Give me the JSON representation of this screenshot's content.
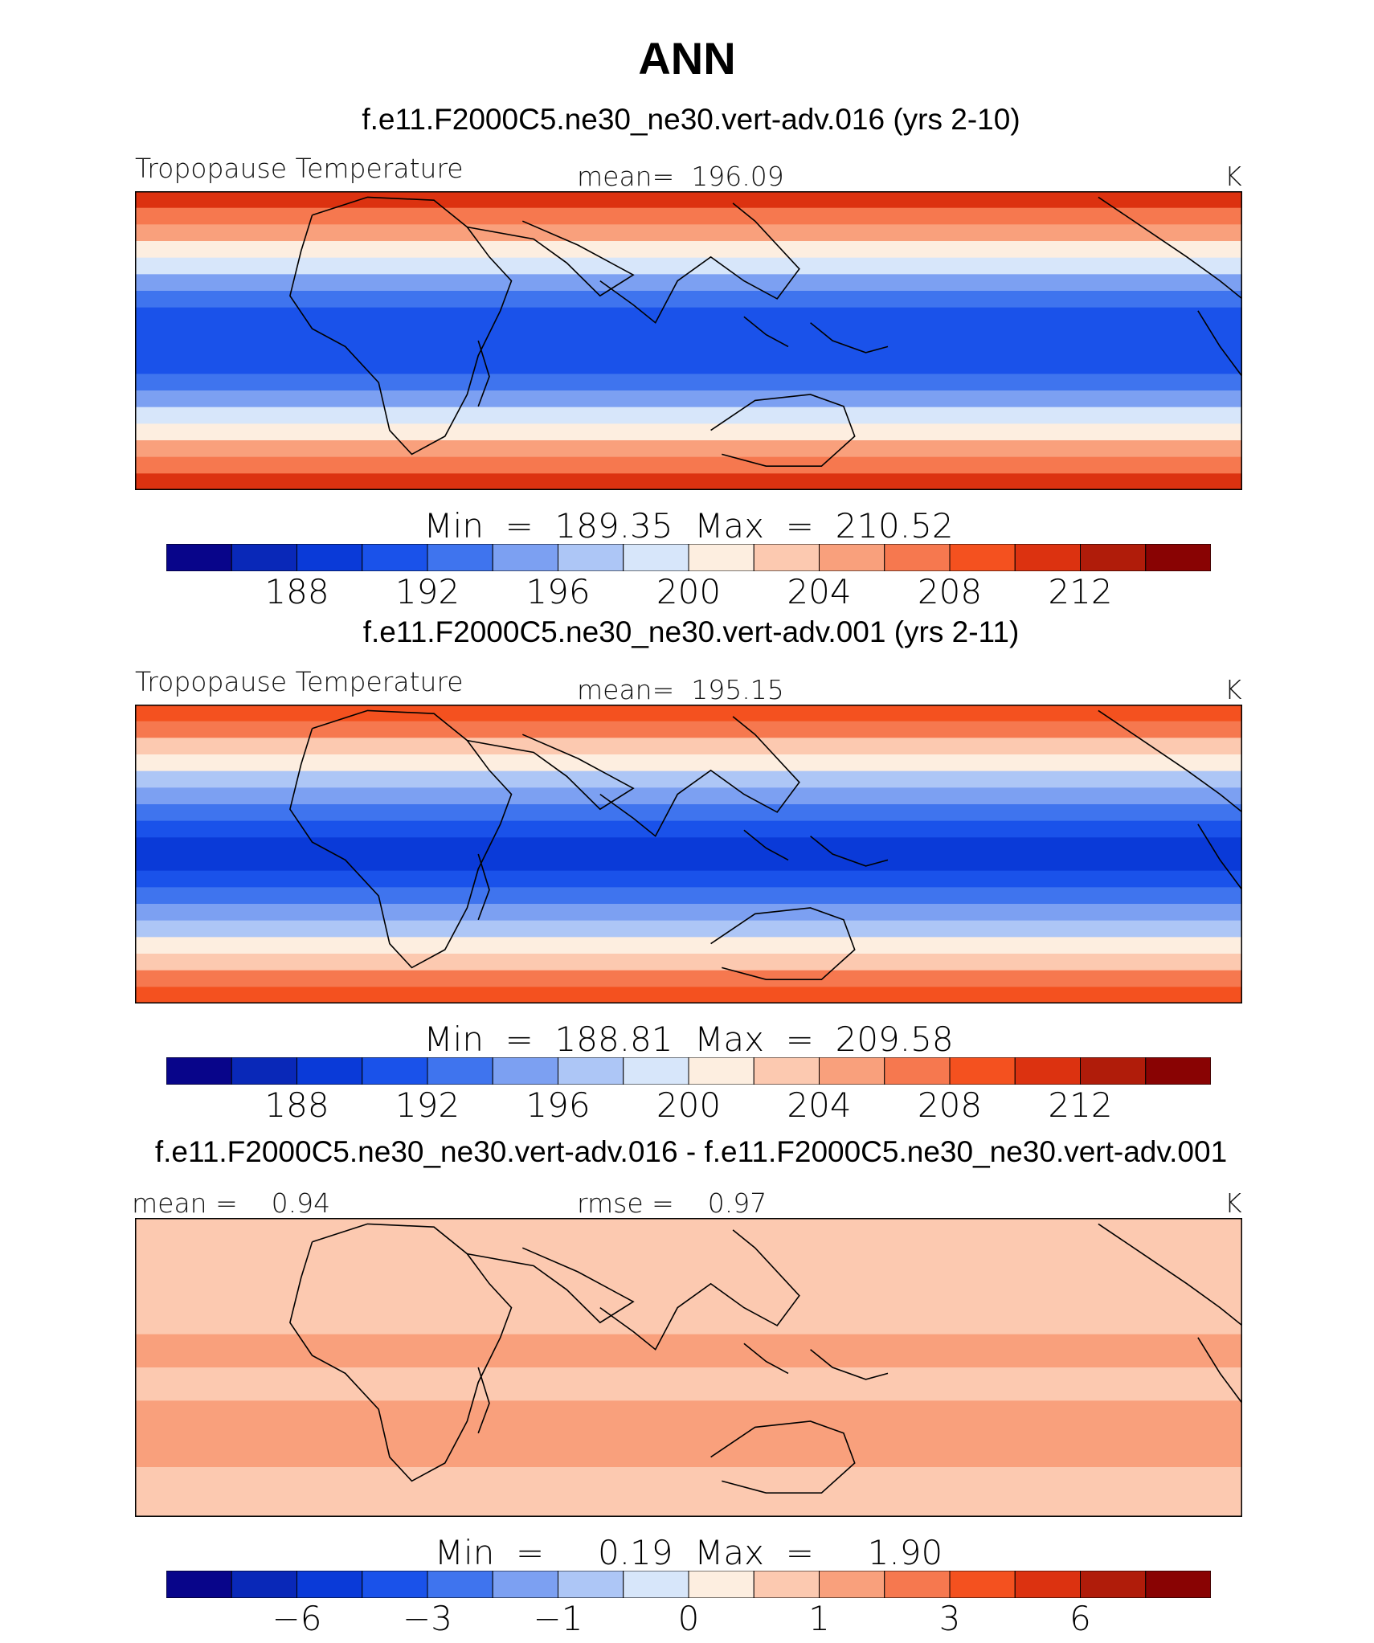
{
  "figure": {
    "title": "ANN",
    "units": "K"
  },
  "palette": [
    "#08058a",
    "#0928b8",
    "#0a3ad8",
    "#1a52ea",
    "#3f74ee",
    "#7ca0f2",
    "#adc6f6",
    "#d7e6fa",
    "#fdeee0",
    "#fcc9b0",
    "#f9a07c",
    "#f6784f",
    "#f4511f",
    "#dc3210",
    "#b01c0a",
    "#890303"
  ],
  "chart_data": [
    {
      "type": "heatmap",
      "title": "f.e11.F2000C5.ne30_ne30.vert-adv.016 (yrs 2-10)",
      "left_label": "Tropopause Temperature",
      "center_label": "mean=  196.09",
      "units": "K",
      "mean": 196.09,
      "min_max_text": "Min  =  189.35  Max  =  210.52",
      "min": 189.35,
      "max": 210.52,
      "contour_levels": [
        186,
        188,
        190,
        192,
        194,
        196,
        198,
        200,
        202,
        204,
        206,
        208,
        210,
        212,
        214
      ],
      "colorbar_ticks": [
        "188",
        "192",
        "196",
        "200",
        "204",
        "208",
        "212"
      ],
      "latitude_band_values": [
        210,
        207,
        204,
        201,
        198,
        195,
        193,
        191,
        190,
        190,
        191,
        193,
        195,
        198,
        201,
        204,
        207,
        210
      ]
    },
    {
      "type": "heatmap",
      "title": "f.e11.F2000C5.ne30_ne30.vert-adv.001 (yrs 2-11)",
      "left_label": "Tropopause Temperature",
      "center_label": "mean=  195.15",
      "units": "K",
      "mean": 195.15,
      "min_max_text": "Min  =  188.81  Max  =  209.58",
      "min": 188.81,
      "max": 209.58,
      "contour_levels": [
        186,
        188,
        190,
        192,
        194,
        196,
        198,
        200,
        202,
        204,
        206,
        208,
        210,
        212,
        214
      ],
      "colorbar_ticks": [
        "188",
        "192",
        "196",
        "200",
        "204",
        "208",
        "212"
      ],
      "latitude_band_values": [
        209,
        206,
        203,
        200,
        197,
        194,
        192,
        190,
        189,
        189,
        190,
        192,
        194,
        197,
        200,
        203,
        206,
        209
      ]
    },
    {
      "type": "heatmap",
      "title": "f.e11.F2000C5.ne30_ne30.vert-adv.016 - f.e11.F2000C5.ne30_ne30.vert-adv.001",
      "left_label": "mean =    0.94",
      "center_label": "rmse =    0.97",
      "units": "K",
      "mean": 0.94,
      "rmse": 0.97,
      "min_max_text": "Min  =     0.19  Max  =     1.90",
      "min": 0.19,
      "max": 1.9,
      "contour_levels": [
        -8,
        -6,
        -4,
        -3,
        -2,
        -1,
        -0.5,
        0,
        0.5,
        1,
        2,
        3,
        4,
        6,
        8
      ],
      "colorbar_ticks": [
        "−6",
        "−3",
        "−1",
        "0",
        "1",
        "3",
        "6"
      ],
      "latitude_band_values": [
        0.9,
        0.9,
        0.8,
        0.8,
        0.9,
        0.9,
        0.9,
        1.0,
        1.0,
        0.9,
        0.9,
        1.0,
        1.1,
        1.1,
        1.0,
        0.9,
        0.9,
        0.9
      ]
    }
  ]
}
